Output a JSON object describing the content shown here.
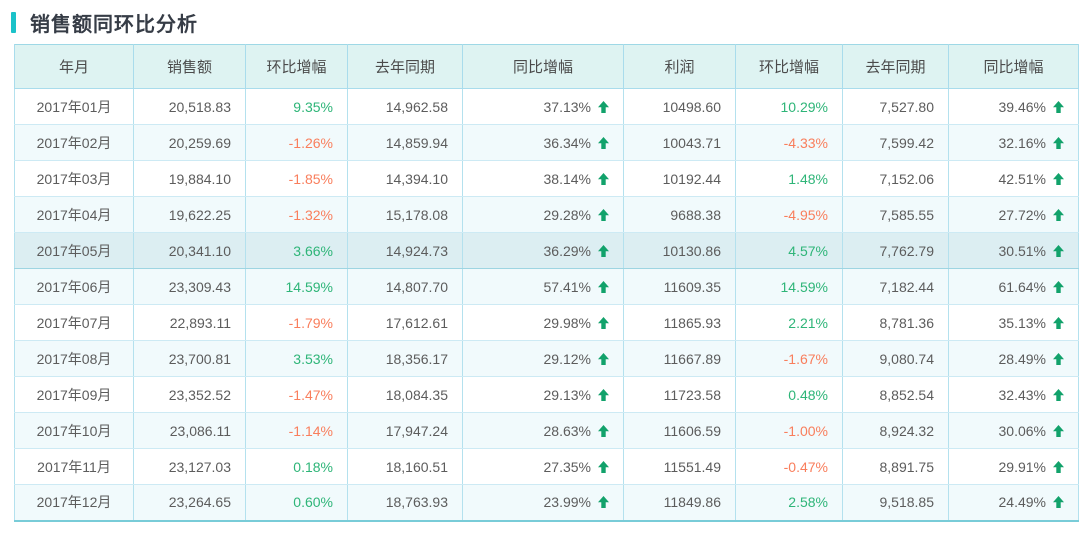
{
  "page": {
    "title": "销售额同环比分析"
  },
  "colors": {
    "accent": "#1bc2c9",
    "title_text": "#363c46",
    "header_bg": "#def3f2",
    "border": "#a9dcec",
    "row_stripe": "#f1fafc",
    "row_highlight": "#dceef2",
    "value_text": "#5c5c5c",
    "positive_green": "#2eb578",
    "negative_orange": "#f97e5c",
    "arrow_green": "#12a26b"
  },
  "chart_data": {
    "type": "table",
    "title": "销售额同环比分析",
    "legend_note": "环比增幅 green when positive, orange when negative; 同比增幅 shown with green up arrow",
    "highlighted_row": 4,
    "columns": [
      {
        "key": "month",
        "label": "年月",
        "align": "center",
        "type": "text"
      },
      {
        "key": "sales",
        "label": "销售额",
        "align": "right",
        "type": "number"
      },
      {
        "key": "sales_mom",
        "label": "环比增幅",
        "align": "right",
        "type": "percent"
      },
      {
        "key": "sales_ly",
        "label": "去年同期",
        "align": "right",
        "type": "number"
      },
      {
        "key": "sales_yoy",
        "label": "同比增幅",
        "align": "right",
        "type": "percent-arrow"
      },
      {
        "key": "profit",
        "label": "利润",
        "align": "right",
        "type": "number"
      },
      {
        "key": "profit_mom",
        "label": "环比增幅",
        "align": "right",
        "type": "percent"
      },
      {
        "key": "profit_ly",
        "label": "去年同期",
        "align": "right",
        "type": "number"
      },
      {
        "key": "profit_yoy",
        "label": "同比增幅",
        "align": "right",
        "type": "percent-arrow"
      }
    ],
    "rows": [
      {
        "month": "2017年01月",
        "sales": "20,518.83",
        "sales_mom": "9.35%",
        "sales_ly": "14,962.58",
        "sales_yoy": "37.13%",
        "profit": "10498.60",
        "profit_mom": "10.29%",
        "profit_ly": "7,527.80",
        "profit_yoy": "39.46%"
      },
      {
        "month": "2017年02月",
        "sales": "20,259.69",
        "sales_mom": "-1.26%",
        "sales_ly": "14,859.94",
        "sales_yoy": "36.34%",
        "profit": "10043.71",
        "profit_mom": "-4.33%",
        "profit_ly": "7,599.42",
        "profit_yoy": "32.16%"
      },
      {
        "month": "2017年03月",
        "sales": "19,884.10",
        "sales_mom": "-1.85%",
        "sales_ly": "14,394.10",
        "sales_yoy": "38.14%",
        "profit": "10192.44",
        "profit_mom": "1.48%",
        "profit_ly": "7,152.06",
        "profit_yoy": "42.51%"
      },
      {
        "month": "2017年04月",
        "sales": "19,622.25",
        "sales_mom": "-1.32%",
        "sales_ly": "15,178.08",
        "sales_yoy": "29.28%",
        "profit": "9688.38",
        "profit_mom": "-4.95%",
        "profit_ly": "7,585.55",
        "profit_yoy": "27.72%"
      },
      {
        "month": "2017年05月",
        "sales": "20,341.10",
        "sales_mom": "3.66%",
        "sales_ly": "14,924.73",
        "sales_yoy": "36.29%",
        "profit": "10130.86",
        "profit_mom": "4.57%",
        "profit_ly": "7,762.79",
        "profit_yoy": "30.51%"
      },
      {
        "month": "2017年06月",
        "sales": "23,309.43",
        "sales_mom": "14.59%",
        "sales_ly": "14,807.70",
        "sales_yoy": "57.41%",
        "profit": "11609.35",
        "profit_mom": "14.59%",
        "profit_ly": "7,182.44",
        "profit_yoy": "61.64%"
      },
      {
        "month": "2017年07月",
        "sales": "22,893.11",
        "sales_mom": "-1.79%",
        "sales_ly": "17,612.61",
        "sales_yoy": "29.98%",
        "profit": "11865.93",
        "profit_mom": "2.21%",
        "profit_ly": "8,781.36",
        "profit_yoy": "35.13%"
      },
      {
        "month": "2017年08月",
        "sales": "23,700.81",
        "sales_mom": "3.53%",
        "sales_ly": "18,356.17",
        "sales_yoy": "29.12%",
        "profit": "11667.89",
        "profit_mom": "-1.67%",
        "profit_ly": "9,080.74",
        "profit_yoy": "28.49%"
      },
      {
        "month": "2017年09月",
        "sales": "23,352.52",
        "sales_mom": "-1.47%",
        "sales_ly": "18,084.35",
        "sales_yoy": "29.13%",
        "profit": "11723.58",
        "profit_mom": "0.48%",
        "profit_ly": "8,852.54",
        "profit_yoy": "32.43%"
      },
      {
        "month": "2017年10月",
        "sales": "23,086.11",
        "sales_mom": "-1.14%",
        "sales_ly": "17,947.24",
        "sales_yoy": "28.63%",
        "profit": "11606.59",
        "profit_mom": "-1.00%",
        "profit_ly": "8,924.32",
        "profit_yoy": "30.06%"
      },
      {
        "month": "2017年11月",
        "sales": "23,127.03",
        "sales_mom": "0.18%",
        "sales_ly": "18,160.51",
        "sales_yoy": "27.35%",
        "profit": "11551.49",
        "profit_mom": "-0.47%",
        "profit_ly": "8,891.75",
        "profit_yoy": "29.91%"
      },
      {
        "month": "2017年12月",
        "sales": "23,264.65",
        "sales_mom": "0.60%",
        "sales_ly": "18,763.93",
        "sales_yoy": "23.99%",
        "profit": "11849.86",
        "profit_mom": "2.58%",
        "profit_ly": "9,518.85",
        "profit_yoy": "24.49%"
      }
    ]
  }
}
